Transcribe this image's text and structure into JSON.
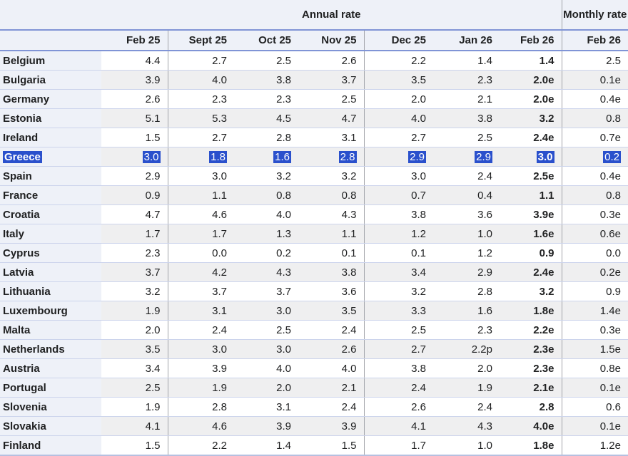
{
  "header": {
    "annual_group_label": "Annual rate",
    "monthly_group_label": "Monthly rate"
  },
  "selection": {
    "selected_country": "Greece",
    "highlight_color": "#2a50cc",
    "highlight_text_color": "#ffffff"
  },
  "colors": {
    "header_background": "#eef1f8",
    "country_cell_background": "#eef1f8",
    "stripe_gray": "#efeff0",
    "header_rule_blue": "#8094d6",
    "row_separator": "#ccd4ec",
    "group_separator_gray": "#a2a4aa",
    "bottom_border": "#b6c0e0",
    "text": "#202122"
  },
  "chart_data": {
    "type": "table",
    "column_groups": [
      {
        "label": "Annual rate",
        "columns": [
          "Feb 25",
          "Sept 25",
          "Oct 25",
          "Nov 25",
          "Dec 25",
          "Jan 26",
          "Feb 26"
        ]
      },
      {
        "label": "Monthly rate",
        "columns": [
          "Feb 26"
        ]
      }
    ],
    "rows": [
      {
        "country": "Belgium",
        "annual": [
          "4.4",
          "2.7",
          "2.5",
          "2.6",
          "2.2",
          "1.4",
          "1.4"
        ],
        "monthly": "2.5",
        "selected": false
      },
      {
        "country": "Bulgaria",
        "annual": [
          "3.9",
          "4.0",
          "3.8",
          "3.7",
          "3.5",
          "2.3",
          "2.0e"
        ],
        "monthly": "0.1e",
        "selected": false
      },
      {
        "country": "Germany",
        "annual": [
          "2.6",
          "2.3",
          "2.3",
          "2.5",
          "2.0",
          "2.1",
          "2.0e"
        ],
        "monthly": "0.4e",
        "selected": false
      },
      {
        "country": "Estonia",
        "annual": [
          "5.1",
          "5.3",
          "4.5",
          "4.7",
          "4.0",
          "3.8",
          "3.2"
        ],
        "monthly": "0.8",
        "selected": false
      },
      {
        "country": "Ireland",
        "annual": [
          "1.5",
          "2.7",
          "2.8",
          "3.1",
          "2.7",
          "2.5",
          "2.4e"
        ],
        "monthly": "0.7e",
        "selected": false
      },
      {
        "country": "Greece",
        "annual": [
          "3.0",
          "1.8",
          "1.6",
          "2.8",
          "2.9",
          "2.9",
          "3.0"
        ],
        "monthly": "0.2",
        "selected": true
      },
      {
        "country": "Spain",
        "annual": [
          "2.9",
          "3.0",
          "3.2",
          "3.2",
          "3.0",
          "2.4",
          "2.5e"
        ],
        "monthly": "0.4e",
        "selected": false
      },
      {
        "country": "France",
        "annual": [
          "0.9",
          "1.1",
          "0.8",
          "0.8",
          "0.7",
          "0.4",
          "1.1"
        ],
        "monthly": "0.8",
        "selected": false
      },
      {
        "country": "Croatia",
        "annual": [
          "4.7",
          "4.6",
          "4.0",
          "4.3",
          "3.8",
          "3.6",
          "3.9e"
        ],
        "monthly": "0.3e",
        "selected": false
      },
      {
        "country": "Italy",
        "annual": [
          "1.7",
          "1.7",
          "1.3",
          "1.1",
          "1.2",
          "1.0",
          "1.6e"
        ],
        "monthly": "0.6e",
        "selected": false
      },
      {
        "country": "Cyprus",
        "annual": [
          "2.3",
          "0.0",
          "0.2",
          "0.1",
          "0.1",
          "1.2",
          "0.9"
        ],
        "monthly": "0.0",
        "selected": false
      },
      {
        "country": "Latvia",
        "annual": [
          "3.7",
          "4.2",
          "4.3",
          "3.8",
          "3.4",
          "2.9",
          "2.4e"
        ],
        "monthly": "0.2e",
        "selected": false
      },
      {
        "country": "Lithuania",
        "annual": [
          "3.2",
          "3.7",
          "3.7",
          "3.6",
          "3.2",
          "2.8",
          "3.2"
        ],
        "monthly": "0.9",
        "selected": false
      },
      {
        "country": "Luxembourg",
        "annual": [
          "1.9",
          "3.1",
          "3.0",
          "3.5",
          "3.3",
          "1.6",
          "1.8e"
        ],
        "monthly": "1.4e",
        "selected": false
      },
      {
        "country": "Malta",
        "annual": [
          "2.0",
          "2.4",
          "2.5",
          "2.4",
          "2.5",
          "2.3",
          "2.2e"
        ],
        "monthly": "0.3e",
        "selected": false
      },
      {
        "country": "Netherlands",
        "annual": [
          "3.5",
          "3.0",
          "3.0",
          "2.6",
          "2.7",
          "2.2p",
          "2.3e"
        ],
        "monthly": "1.5e",
        "selected": false
      },
      {
        "country": "Austria",
        "annual": [
          "3.4",
          "3.9",
          "4.0",
          "4.0",
          "3.8",
          "2.0",
          "2.3e"
        ],
        "monthly": "0.8e",
        "selected": false
      },
      {
        "country": "Portugal",
        "annual": [
          "2.5",
          "1.9",
          "2.0",
          "2.1",
          "2.4",
          "1.9",
          "2.1e"
        ],
        "monthly": "0.1e",
        "selected": false
      },
      {
        "country": "Slovenia",
        "annual": [
          "1.9",
          "2.8",
          "3.1",
          "2.4",
          "2.6",
          "2.4",
          "2.8"
        ],
        "monthly": "0.6",
        "selected": false
      },
      {
        "country": "Slovakia",
        "annual": [
          "4.1",
          "4.6",
          "3.9",
          "3.9",
          "4.1",
          "4.3",
          "4.0e"
        ],
        "monthly": "0.1e",
        "selected": false
      },
      {
        "country": "Finland",
        "annual": [
          "1.5",
          "2.2",
          "1.4",
          "1.5",
          "1.7",
          "1.0",
          "1.8e"
        ],
        "monthly": "1.2e",
        "selected": false
      }
    ]
  }
}
